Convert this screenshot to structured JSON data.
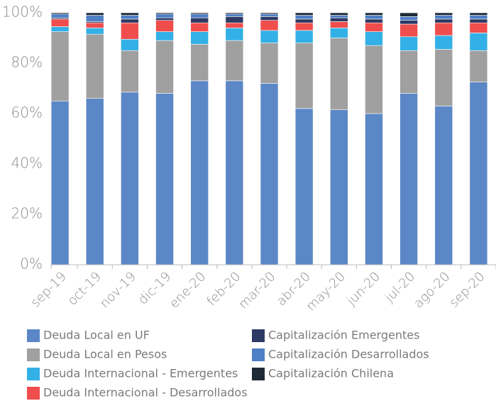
{
  "chart_data": {
    "type": "stacked_bar",
    "categories": [
      "sep-19",
      "oct-19",
      "nov-19",
      "dic-19",
      "ene-20",
      "feb-20",
      "mar-20",
      "abr-20",
      "may-20",
      "jun-20",
      "jul-20",
      "ago-20",
      "sep-20"
    ],
    "series": [
      {
        "name": "Deuda Local en UF",
        "color": "#5b87c7",
        "values": [
          65,
          66,
          68.5,
          68,
          73,
          73,
          72,
          62,
          61.5,
          60,
          68,
          63,
          72.5
        ]
      },
      {
        "name": "Deuda Local en Pesos",
        "color": "#a0a0a0",
        "values": [
          27.5,
          25.5,
          16.5,
          21,
          14.5,
          16,
          16,
          26,
          28.5,
          27,
          17,
          22.5,
          12.5
        ]
      },
      {
        "name": "Deuda Internacional - Emergentes",
        "color": "#33b0e6",
        "values": [
          2,
          2.5,
          4.5,
          3.5,
          5,
          5,
          5,
          5,
          4,
          5.5,
          5.5,
          5.5,
          7
        ]
      },
      {
        "name": "Deuda Internacional - Desarrollados",
        "color": "#f04d4d",
        "values": [
          3,
          2,
          6.5,
          4.5,
          3.5,
          2,
          4,
          3,
          2.5,
          3.5,
          5,
          5,
          4
        ]
      },
      {
        "name": "Capitalización Emergentes",
        "color": "#2d3a64",
        "values": [
          0.5,
          0.5,
          1.5,
          1,
          2,
          2.5,
          1.5,
          1.5,
          1.5,
          1.5,
          1.5,
          1.5,
          1.5
        ]
      },
      {
        "name": "Capitalización Desarrollados",
        "color": "#4f7fc4",
        "values": [
          1.5,
          2.5,
          1.5,
          1.5,
          1.5,
          1,
          1,
          1.5,
          1,
          1.5,
          1.5,
          1.5,
          1.5
        ]
      },
      {
        "name": "Capitalización Chilena",
        "color": "#1e2a36",
        "values": [
          0.5,
          1,
          1,
          0.5,
          0.5,
          0.5,
          0.5,
          1,
          1,
          1,
          1.5,
          1,
          1
        ]
      }
    ],
    "ylim": [
      0,
      100
    ],
    "yticks": [
      {
        "value": 0,
        "label": "0%"
      },
      {
        "value": 20,
        "label": "20%"
      },
      {
        "value": 40,
        "label": "40%"
      },
      {
        "value": 60,
        "label": "60%"
      },
      {
        "value": 80,
        "label": "80%"
      },
      {
        "value": 100,
        "label": "100%"
      }
    ],
    "legend": "bottom"
  }
}
